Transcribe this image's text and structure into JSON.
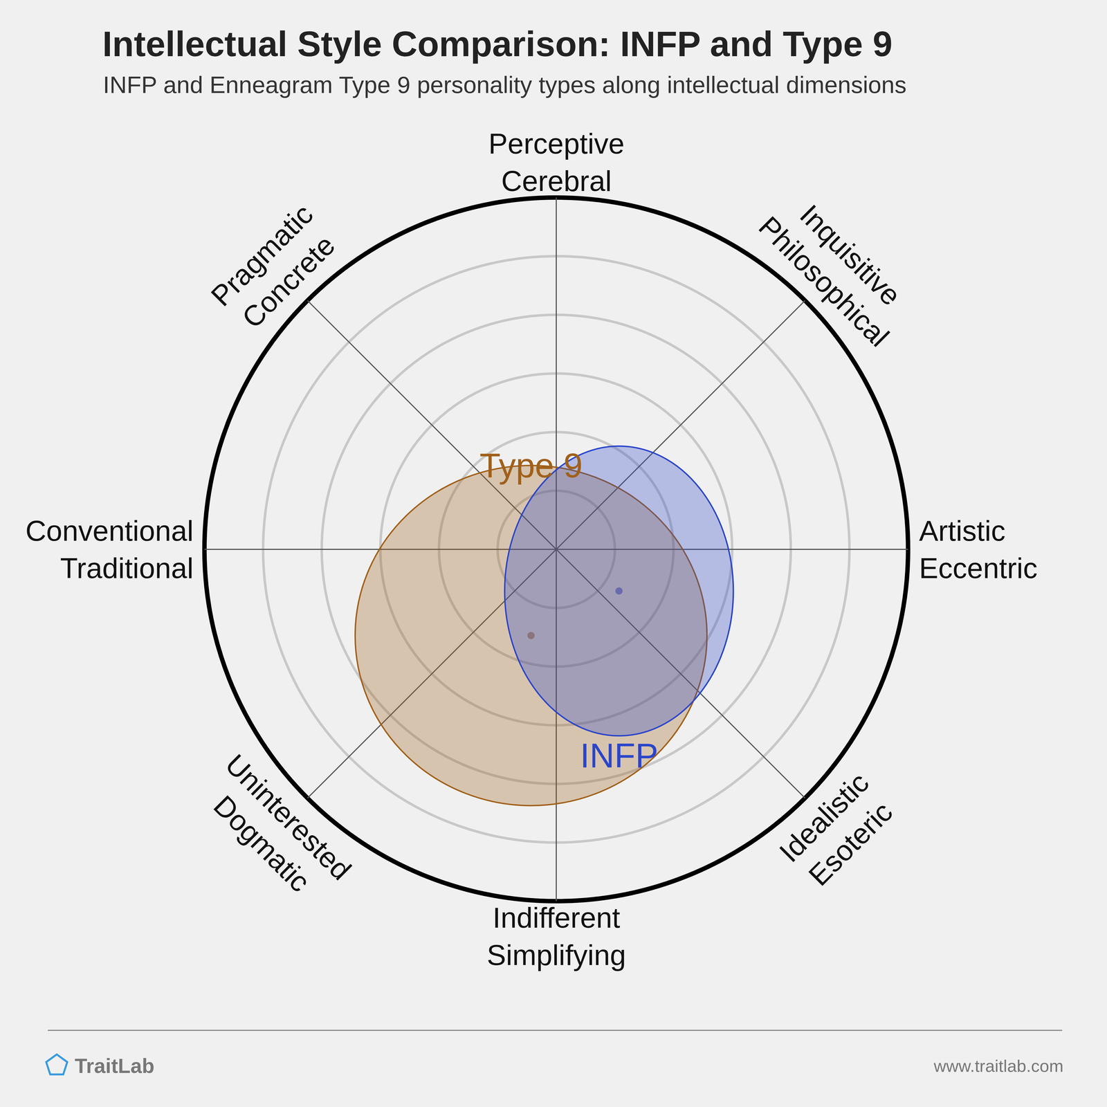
{
  "chart_data": {
    "type": "radar_ellipse",
    "title": "Intellectual Style Comparison: INFP and Type 9",
    "subtitle": "INFP and Enneagram Type 9 personality types along intellectual dimensions",
    "axes": [
      {
        "angle": 90,
        "label": [
          "Perceptive",
          "Cerebral"
        ]
      },
      {
        "angle": 45,
        "label": [
          "Inquisitive",
          "Philosophical"
        ]
      },
      {
        "angle": 0,
        "label": [
          "Artistic",
          "Eccentric"
        ]
      },
      {
        "angle": -45,
        "label": [
          "Idealistic",
          "Esoteric"
        ]
      },
      {
        "angle": -90,
        "label": [
          "Indifferent",
          "Simplifying"
        ]
      },
      {
        "angle": -135,
        "label": [
          "Uninterested",
          "Dogmatic"
        ]
      },
      {
        "angle": 180,
        "label": [
          "Conventional",
          "Traditional"
        ]
      },
      {
        "angle": 135,
        "label": [
          "Pragmatic",
          "Concrete"
        ]
      }
    ],
    "rings": [
      1,
      2,
      3,
      4,
      5,
      6
    ],
    "tick_labels": false,
    "series": [
      {
        "name": "Type 9",
        "color": "#a0601a",
        "center": [
          -0.43,
          -1.47
        ],
        "radius": [
          3.0,
          2.9
        ]
      },
      {
        "name": "INFP",
        "color": "#2a45c9",
        "center": [
          1.07,
          -0.71
        ],
        "radius": [
          1.95,
          2.47
        ]
      }
    ],
    "brand": "TraitLab",
    "url": "www.traitlab.com"
  }
}
